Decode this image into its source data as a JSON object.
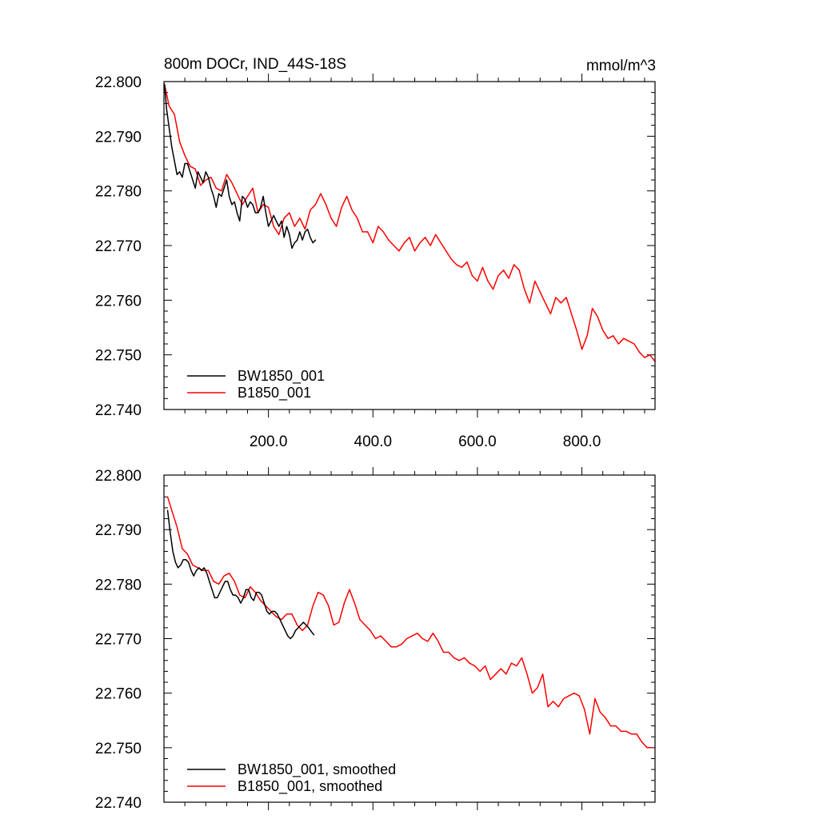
{
  "chart_data": [
    {
      "type": "line",
      "title_left": "800m DOCr, IND_44S-18S",
      "title_right": "mmol/m^3",
      "xlim": [
        0,
        940
      ],
      "ylim": [
        22.74,
        22.8
      ],
      "xticks": [
        200,
        400,
        600,
        800
      ],
      "xtick_labels": [
        "200.0",
        "400.0",
        "600.0",
        "800.0"
      ],
      "yticks": [
        22.74,
        22.75,
        22.76,
        22.77,
        22.78,
        22.79,
        22.8
      ],
      "ytick_labels": [
        "22.740",
        "22.750",
        "22.760",
        "22.770",
        "22.780",
        "22.790",
        "22.800"
      ],
      "legend_position": "bottom-left",
      "series": [
        {
          "name": "BW1850_001",
          "color": "#000000",
          "x": [
            1,
            5,
            10,
            15,
            20,
            25,
            30,
            35,
            40,
            45,
            50,
            55,
            60,
            65,
            70,
            75,
            80,
            85,
            90,
            95,
            100,
            105,
            110,
            115,
            120,
            125,
            130,
            135,
            140,
            145,
            150,
            155,
            160,
            165,
            170,
            175,
            180,
            185,
            190,
            195,
            200,
            205,
            210,
            215,
            220,
            225,
            230,
            235,
            240,
            245,
            250,
            255,
            260,
            265,
            270,
            275,
            280,
            285,
            290
          ],
          "y": [
            22.7995,
            22.795,
            22.7915,
            22.788,
            22.7855,
            22.783,
            22.7835,
            22.7825,
            22.785,
            22.785,
            22.7835,
            22.782,
            22.7805,
            22.7835,
            22.7825,
            22.7815,
            22.7835,
            22.7825,
            22.7805,
            22.779,
            22.777,
            22.7795,
            22.779,
            22.7805,
            22.782,
            22.779,
            22.7775,
            22.778,
            22.776,
            22.7745,
            22.779,
            22.7785,
            22.777,
            22.778,
            22.7775,
            22.776,
            22.776,
            22.777,
            22.779,
            22.776,
            22.7735,
            22.7745,
            22.7755,
            22.7745,
            22.7735,
            22.7745,
            22.7715,
            22.7735,
            22.772,
            22.7695,
            22.7705,
            22.771,
            22.7725,
            22.771,
            22.7725,
            22.773,
            22.7715,
            22.7705,
            22.771
          ]
        },
        {
          "name": "B1850_001",
          "color": "#ff0000",
          "x": [
            1,
            10,
            20,
            30,
            40,
            50,
            60,
            70,
            80,
            90,
            100,
            110,
            120,
            130,
            140,
            150,
            160,
            170,
            180,
            190,
            200,
            210,
            220,
            230,
            240,
            250,
            260,
            270,
            280,
            290,
            300,
            310,
            320,
            330,
            340,
            350,
            360,
            370,
            380,
            390,
            400,
            410,
            420,
            430,
            440,
            450,
            460,
            470,
            480,
            490,
            500,
            510,
            520,
            530,
            540,
            550,
            560,
            570,
            580,
            590,
            600,
            610,
            620,
            630,
            640,
            650,
            660,
            670,
            680,
            690,
            700,
            710,
            720,
            730,
            740,
            750,
            760,
            770,
            780,
            790,
            800,
            810,
            820,
            830,
            840,
            850,
            860,
            870,
            880,
            890,
            900,
            910,
            920,
            930,
            940
          ],
          "y": [
            22.7995,
            22.7955,
            22.794,
            22.789,
            22.7865,
            22.7845,
            22.784,
            22.781,
            22.782,
            22.7825,
            22.7805,
            22.78,
            22.783,
            22.7815,
            22.7795,
            22.7775,
            22.779,
            22.7805,
            22.776,
            22.7775,
            22.777,
            22.7735,
            22.772,
            22.775,
            22.776,
            22.7735,
            22.775,
            22.773,
            22.7765,
            22.7775,
            22.7795,
            22.7775,
            22.775,
            22.7735,
            22.777,
            22.779,
            22.7765,
            22.775,
            22.7725,
            22.7725,
            22.7705,
            22.7735,
            22.7725,
            22.771,
            22.77,
            22.769,
            22.7705,
            22.7715,
            22.769,
            22.7705,
            22.7715,
            22.77,
            22.772,
            22.7705,
            22.769,
            22.7675,
            22.7665,
            22.766,
            22.767,
            22.7645,
            22.7635,
            22.766,
            22.7635,
            22.762,
            22.7645,
            22.7655,
            22.764,
            22.7665,
            22.7655,
            22.762,
            22.7595,
            22.7635,
            22.7615,
            22.7595,
            22.7575,
            22.7605,
            22.7595,
            22.7605,
            22.7575,
            22.7545,
            22.751,
            22.7535,
            22.7585,
            22.757,
            22.7545,
            22.753,
            22.7535,
            22.752,
            22.753,
            22.7525,
            22.752,
            22.7505,
            22.7495,
            22.75,
            22.7488
          ]
        }
      ]
    },
    {
      "type": "line",
      "xlim": [
        0,
        940
      ],
      "ylim": [
        22.74,
        22.8
      ],
      "xticks": [
        200,
        400,
        600,
        800
      ],
      "yticks": [
        22.74,
        22.75,
        22.76,
        22.77,
        22.78,
        22.79,
        22.8
      ],
      "ytick_labels": [
        "22.740",
        "22.750",
        "22.760",
        "22.770",
        "22.780",
        "22.790",
        "22.800"
      ],
      "legend_position": "bottom-left",
      "series": [
        {
          "name": "BW1850_001, smoothed",
          "color": "#000000",
          "x": [
            7,
            12,
            17,
            22,
            27,
            32,
            37,
            42,
            47,
            52,
            57,
            62,
            67,
            72,
            77,
            82,
            87,
            92,
            97,
            102,
            107,
            112,
            117,
            122,
            127,
            132,
            137,
            142,
            147,
            152,
            157,
            162,
            167,
            172,
            177,
            182,
            187,
            192,
            197,
            202,
            207,
            212,
            217,
            222,
            227,
            232,
            237,
            242,
            247,
            252,
            257,
            262,
            267,
            272,
            277,
            282,
            287
          ],
          "y": [
            22.7935,
            22.7895,
            22.786,
            22.784,
            22.783,
            22.7835,
            22.7845,
            22.7845,
            22.784,
            22.7825,
            22.7815,
            22.7825,
            22.783,
            22.7825,
            22.783,
            22.782,
            22.7805,
            22.779,
            22.7775,
            22.7775,
            22.7785,
            22.7795,
            22.7805,
            22.7805,
            22.779,
            22.778,
            22.778,
            22.7775,
            22.7765,
            22.7775,
            22.779,
            22.779,
            22.7775,
            22.777,
            22.7785,
            22.7785,
            22.778,
            22.7765,
            22.775,
            22.7745,
            22.775,
            22.775,
            22.7745,
            22.7735,
            22.7725,
            22.7715,
            22.7705,
            22.77,
            22.7705,
            22.7715,
            22.772,
            22.7725,
            22.773,
            22.7725,
            22.772,
            22.7713,
            22.7707
          ]
        },
        {
          "name": "B1850_001, smoothed",
          "color": "#ff0000",
          "x": [
            7,
            15,
            25,
            35,
            45,
            55,
            65,
            75,
            85,
            95,
            105,
            115,
            125,
            135,
            145,
            155,
            165,
            175,
            185,
            195,
            205,
            215,
            225,
            235,
            245,
            255,
            265,
            275,
            285,
            295,
            305,
            315,
            325,
            335,
            345,
            355,
            365,
            375,
            385,
            395,
            405,
            415,
            425,
            435,
            445,
            455,
            465,
            475,
            485,
            495,
            505,
            515,
            525,
            535,
            545,
            555,
            565,
            575,
            585,
            595,
            605,
            615,
            625,
            635,
            645,
            655,
            665,
            675,
            685,
            695,
            705,
            715,
            725,
            735,
            745,
            755,
            765,
            775,
            785,
            795,
            805,
            815,
            825,
            835,
            845,
            855,
            865,
            875,
            885,
            895,
            905,
            915,
            925,
            935
          ],
          "y": [
            22.796,
            22.7935,
            22.7905,
            22.7865,
            22.7855,
            22.7835,
            22.783,
            22.7825,
            22.7825,
            22.7805,
            22.78,
            22.7815,
            22.782,
            22.7805,
            22.778,
            22.7775,
            22.7795,
            22.7785,
            22.777,
            22.776,
            22.775,
            22.774,
            22.7735,
            22.7745,
            22.7745,
            22.7725,
            22.7715,
            22.7725,
            22.776,
            22.7785,
            22.778,
            22.776,
            22.7725,
            22.773,
            22.7765,
            22.779,
            22.7765,
            22.7735,
            22.7725,
            22.7715,
            22.77,
            22.7705,
            22.7695,
            22.7685,
            22.7685,
            22.769,
            22.77,
            22.7705,
            22.771,
            22.77,
            22.7695,
            22.771,
            22.7695,
            22.7675,
            22.7675,
            22.7665,
            22.766,
            22.7665,
            22.7655,
            22.765,
            22.764,
            22.765,
            22.7625,
            22.7635,
            22.7645,
            22.7635,
            22.7655,
            22.765,
            22.7665,
            22.7635,
            22.76,
            22.761,
            22.7635,
            22.7575,
            22.7585,
            22.7575,
            22.759,
            22.7595,
            22.76,
            22.7595,
            22.757,
            22.7525,
            22.759,
            22.7565,
            22.7555,
            22.754,
            22.754,
            22.753,
            22.753,
            22.7525,
            22.7525,
            22.751,
            22.75,
            22.75
          ]
        }
      ]
    }
  ]
}
